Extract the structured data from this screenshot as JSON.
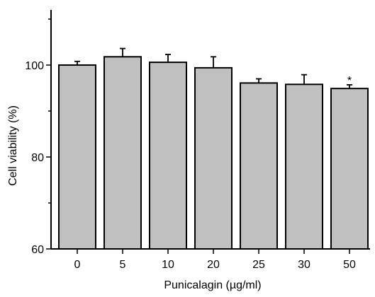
{
  "chart_data": {
    "type": "bar",
    "title": "",
    "xlabel": "Punicalagin (µg/ml)",
    "ylabel": "Cell viability (%)",
    "categories": [
      "0",
      "5",
      "10",
      "20",
      "25",
      "30",
      "50"
    ],
    "values": [
      100.0,
      101.8,
      100.6,
      99.4,
      96.1,
      95.8,
      94.9
    ],
    "errors": [
      0.8,
      1.8,
      1.7,
      2.4,
      0.9,
      2.1,
      0.8
    ],
    "significance": [
      "",
      "",
      "",
      "",
      "",
      "",
      "*"
    ],
    "ylim": [
      60,
      112
    ],
    "yticks": [
      60,
      80,
      100
    ],
    "grid": false,
    "bar_color": "#c0c0c0",
    "edge_color": "#000000"
  }
}
